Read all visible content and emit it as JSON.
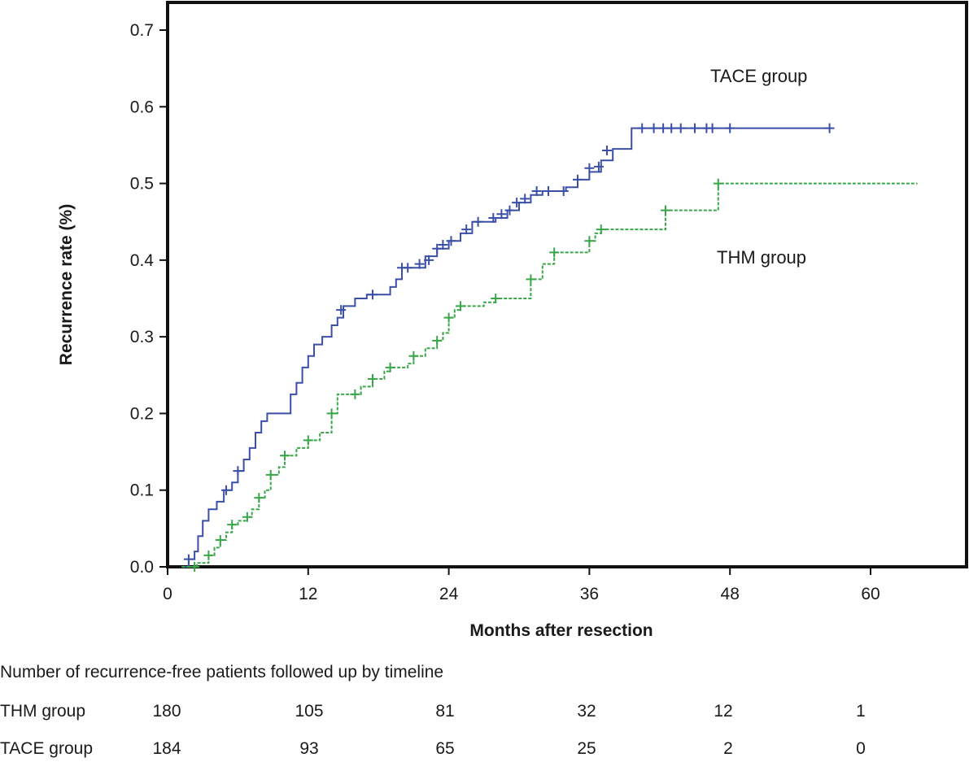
{
  "chart_data": {
    "type": "line",
    "xlabel": "Months after resection",
    "ylabel": "Recurrence rate (%)",
    "xlim": [
      0,
      68
    ],
    "ylim": [
      0,
      0.7
    ],
    "x_ticks": [
      0,
      12,
      24,
      36,
      48,
      60
    ],
    "y_ticks": [
      "0.0",
      "0.1",
      "0.2",
      "0.3",
      "0.4",
      "0.5",
      "0.6",
      "0.7"
    ],
    "grid": false,
    "series": [
      {
        "name": "TACE group",
        "color": "#3b4fa8",
        "style": "solid",
        "steps": [
          [
            1.2,
            0
          ],
          [
            1.8,
            0.01
          ],
          [
            2.3,
            0.02
          ],
          [
            2.6,
            0.04
          ],
          [
            3.0,
            0.06
          ],
          [
            3.5,
            0.075
          ],
          [
            4.2,
            0.085
          ],
          [
            4.8,
            0.1
          ],
          [
            5.5,
            0.11
          ],
          [
            6.0,
            0.125
          ],
          [
            6.5,
            0.14
          ],
          [
            7.0,
            0.155
          ],
          [
            7.5,
            0.175
          ],
          [
            8.0,
            0.19
          ],
          [
            8.5,
            0.2
          ],
          [
            10.0,
            0.2
          ],
          [
            10.5,
            0.225
          ],
          [
            11.0,
            0.24
          ],
          [
            11.5,
            0.26
          ],
          [
            12.0,
            0.275
          ],
          [
            12.5,
            0.29
          ],
          [
            13.2,
            0.3
          ],
          [
            14.0,
            0.315
          ],
          [
            14.5,
            0.325
          ],
          [
            15.0,
            0.34
          ],
          [
            16.0,
            0.35
          ],
          [
            17.0,
            0.355
          ],
          [
            19.0,
            0.365
          ],
          [
            19.5,
            0.375
          ],
          [
            20.0,
            0.39
          ],
          [
            22.0,
            0.405
          ],
          [
            23.0,
            0.415
          ],
          [
            24.0,
            0.425
          ],
          [
            25.0,
            0.435
          ],
          [
            26.0,
            0.45
          ],
          [
            28.0,
            0.455
          ],
          [
            29.0,
            0.465
          ],
          [
            30.0,
            0.475
          ],
          [
            31.0,
            0.485
          ],
          [
            32.0,
            0.49
          ],
          [
            34.0,
            0.495
          ],
          [
            35.0,
            0.505
          ],
          [
            36.0,
            0.515
          ],
          [
            37.0,
            0.53
          ],
          [
            38.0,
            0.545
          ],
          [
            39.6,
            0.545
          ],
          [
            39.6,
            0.572
          ],
          [
            56.5,
            0.572
          ]
        ],
        "censored": [
          [
            1.8,
            0.01
          ],
          [
            5.0,
            0.1
          ],
          [
            6.0,
            0.125
          ],
          [
            14.8,
            0.335
          ],
          [
            17.5,
            0.355
          ],
          [
            20.0,
            0.39
          ],
          [
            20.5,
            0.39
          ],
          [
            21.5,
            0.395
          ],
          [
            22.3,
            0.4
          ],
          [
            23.0,
            0.415
          ],
          [
            23.5,
            0.42
          ],
          [
            24.2,
            0.425
          ],
          [
            25.5,
            0.44
          ],
          [
            26.5,
            0.45
          ],
          [
            27.8,
            0.455
          ],
          [
            28.5,
            0.46
          ],
          [
            29.2,
            0.465
          ],
          [
            29.8,
            0.475
          ],
          [
            30.5,
            0.48
          ],
          [
            31.5,
            0.49
          ],
          [
            32.5,
            0.49
          ],
          [
            33.8,
            0.49
          ],
          [
            35.0,
            0.505
          ],
          [
            36.0,
            0.52
          ],
          [
            36.8,
            0.522
          ],
          [
            37.5,
            0.543
          ],
          [
            40.5,
            0.572
          ],
          [
            41.5,
            0.572
          ],
          [
            42.3,
            0.572
          ],
          [
            43.0,
            0.572
          ],
          [
            43.8,
            0.572
          ],
          [
            45.0,
            0.572
          ],
          [
            46.0,
            0.572
          ],
          [
            46.5,
            0.572
          ],
          [
            48.0,
            0.572
          ],
          [
            56.5,
            0.572
          ]
        ]
      },
      {
        "name": "THM group",
        "color": "#3aa64a",
        "style": "dashed",
        "steps": [
          [
            1.2,
            0
          ],
          [
            2.3,
            0
          ],
          [
            2.5,
            0.005
          ],
          [
            3.5,
            0.015
          ],
          [
            4.0,
            0.025
          ],
          [
            4.5,
            0.035
          ],
          [
            5.0,
            0.045
          ],
          [
            5.5,
            0.055
          ],
          [
            6.0,
            0.06
          ],
          [
            6.8,
            0.065
          ],
          [
            7.2,
            0.075
          ],
          [
            7.8,
            0.09
          ],
          [
            8.3,
            0.1
          ],
          [
            8.8,
            0.12
          ],
          [
            9.5,
            0.13
          ],
          [
            10.0,
            0.145
          ],
          [
            11.0,
            0.155
          ],
          [
            12.0,
            0.165
          ],
          [
            13.0,
            0.175
          ],
          [
            14.0,
            0.2
          ],
          [
            14.5,
            0.225
          ],
          [
            16.0,
            0.225
          ],
          [
            16.5,
            0.235
          ],
          [
            17.5,
            0.245
          ],
          [
            18.5,
            0.255
          ],
          [
            19.0,
            0.26
          ],
          [
            20.5,
            0.265
          ],
          [
            21.0,
            0.275
          ],
          [
            22.0,
            0.285
          ],
          [
            23.0,
            0.295
          ],
          [
            23.5,
            0.305
          ],
          [
            24.0,
            0.325
          ],
          [
            24.5,
            0.335
          ],
          [
            25.0,
            0.34
          ],
          [
            27.0,
            0.345
          ],
          [
            28.0,
            0.35
          ],
          [
            30.5,
            0.35
          ],
          [
            31.0,
            0.375
          ],
          [
            32.0,
            0.395
          ],
          [
            33.0,
            0.41
          ],
          [
            35.5,
            0.41
          ],
          [
            36.0,
            0.425
          ],
          [
            36.5,
            0.435
          ],
          [
            37.0,
            0.44
          ],
          [
            42.0,
            0.44
          ],
          [
            42.5,
            0.465
          ],
          [
            46.5,
            0.465
          ],
          [
            47.0,
            0.5
          ],
          [
            64.0,
            0.5
          ]
        ]
      }
    ],
    "annotations": [
      "TACE group",
      "THM group"
    ]
  },
  "risk_table": {
    "caption": "Number of recurrence-free patients followed up by timeline",
    "rows": [
      {
        "label": "THM group",
        "counts": [
          "180",
          "105",
          "81",
          "32",
          "12",
          "1"
        ]
      },
      {
        "label": "TACE group",
        "counts": [
          "184",
          "93",
          "65",
          "25",
          "2",
          "0"
        ]
      }
    ]
  }
}
